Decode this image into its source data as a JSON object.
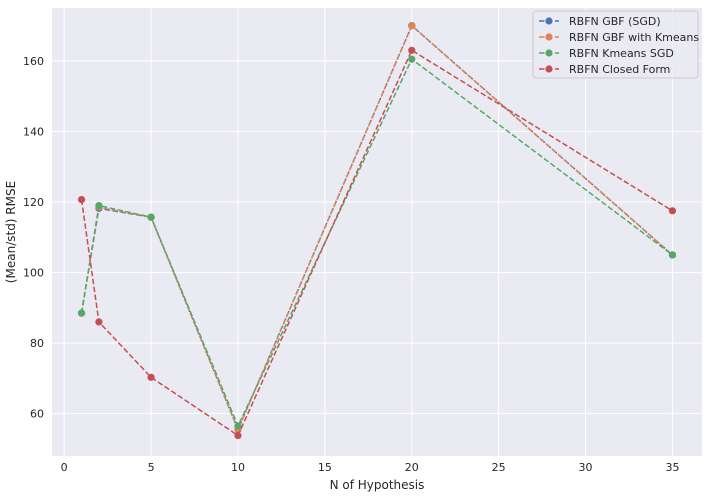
{
  "chart_data": {
    "type": "line",
    "title": "",
    "xlabel": "N of Hypothesis",
    "ylabel": "(Mean/std) RMSE",
    "xlim": [
      -0.7,
      36.7
    ],
    "ylim": [
      48,
      175
    ],
    "xticks": [
      0,
      5,
      10,
      15,
      20,
      25,
      30,
      35
    ],
    "yticks": [
      60,
      80,
      100,
      120,
      140,
      160
    ],
    "grid": true,
    "legend_position": "top-right",
    "x": [
      1,
      2,
      5,
      10,
      20,
      35
    ],
    "series": [
      {
        "name": "RBFN GBF (SGD)",
        "color": "#4c72b0",
        "values": [
          88.5,
          118.2,
          115.7,
          55.5,
          170.0,
          105.0
        ]
      },
      {
        "name": "RBFN GBF with Kmeans",
        "color": "#dd8452",
        "values": [
          88.5,
          118.5,
          115.7,
          55.5,
          170.0,
          105.0
        ]
      },
      {
        "name": "RBFN  Kmeans SGD",
        "color": "#55a868",
        "values": [
          88.5,
          119.0,
          115.7,
          56.5,
          160.5,
          105.0
        ]
      },
      {
        "name": "RBFN Closed Form",
        "color": "#c44e52",
        "values": [
          120.7,
          86.0,
          70.3,
          53.8,
          163.0,
          117.5
        ]
      }
    ]
  }
}
